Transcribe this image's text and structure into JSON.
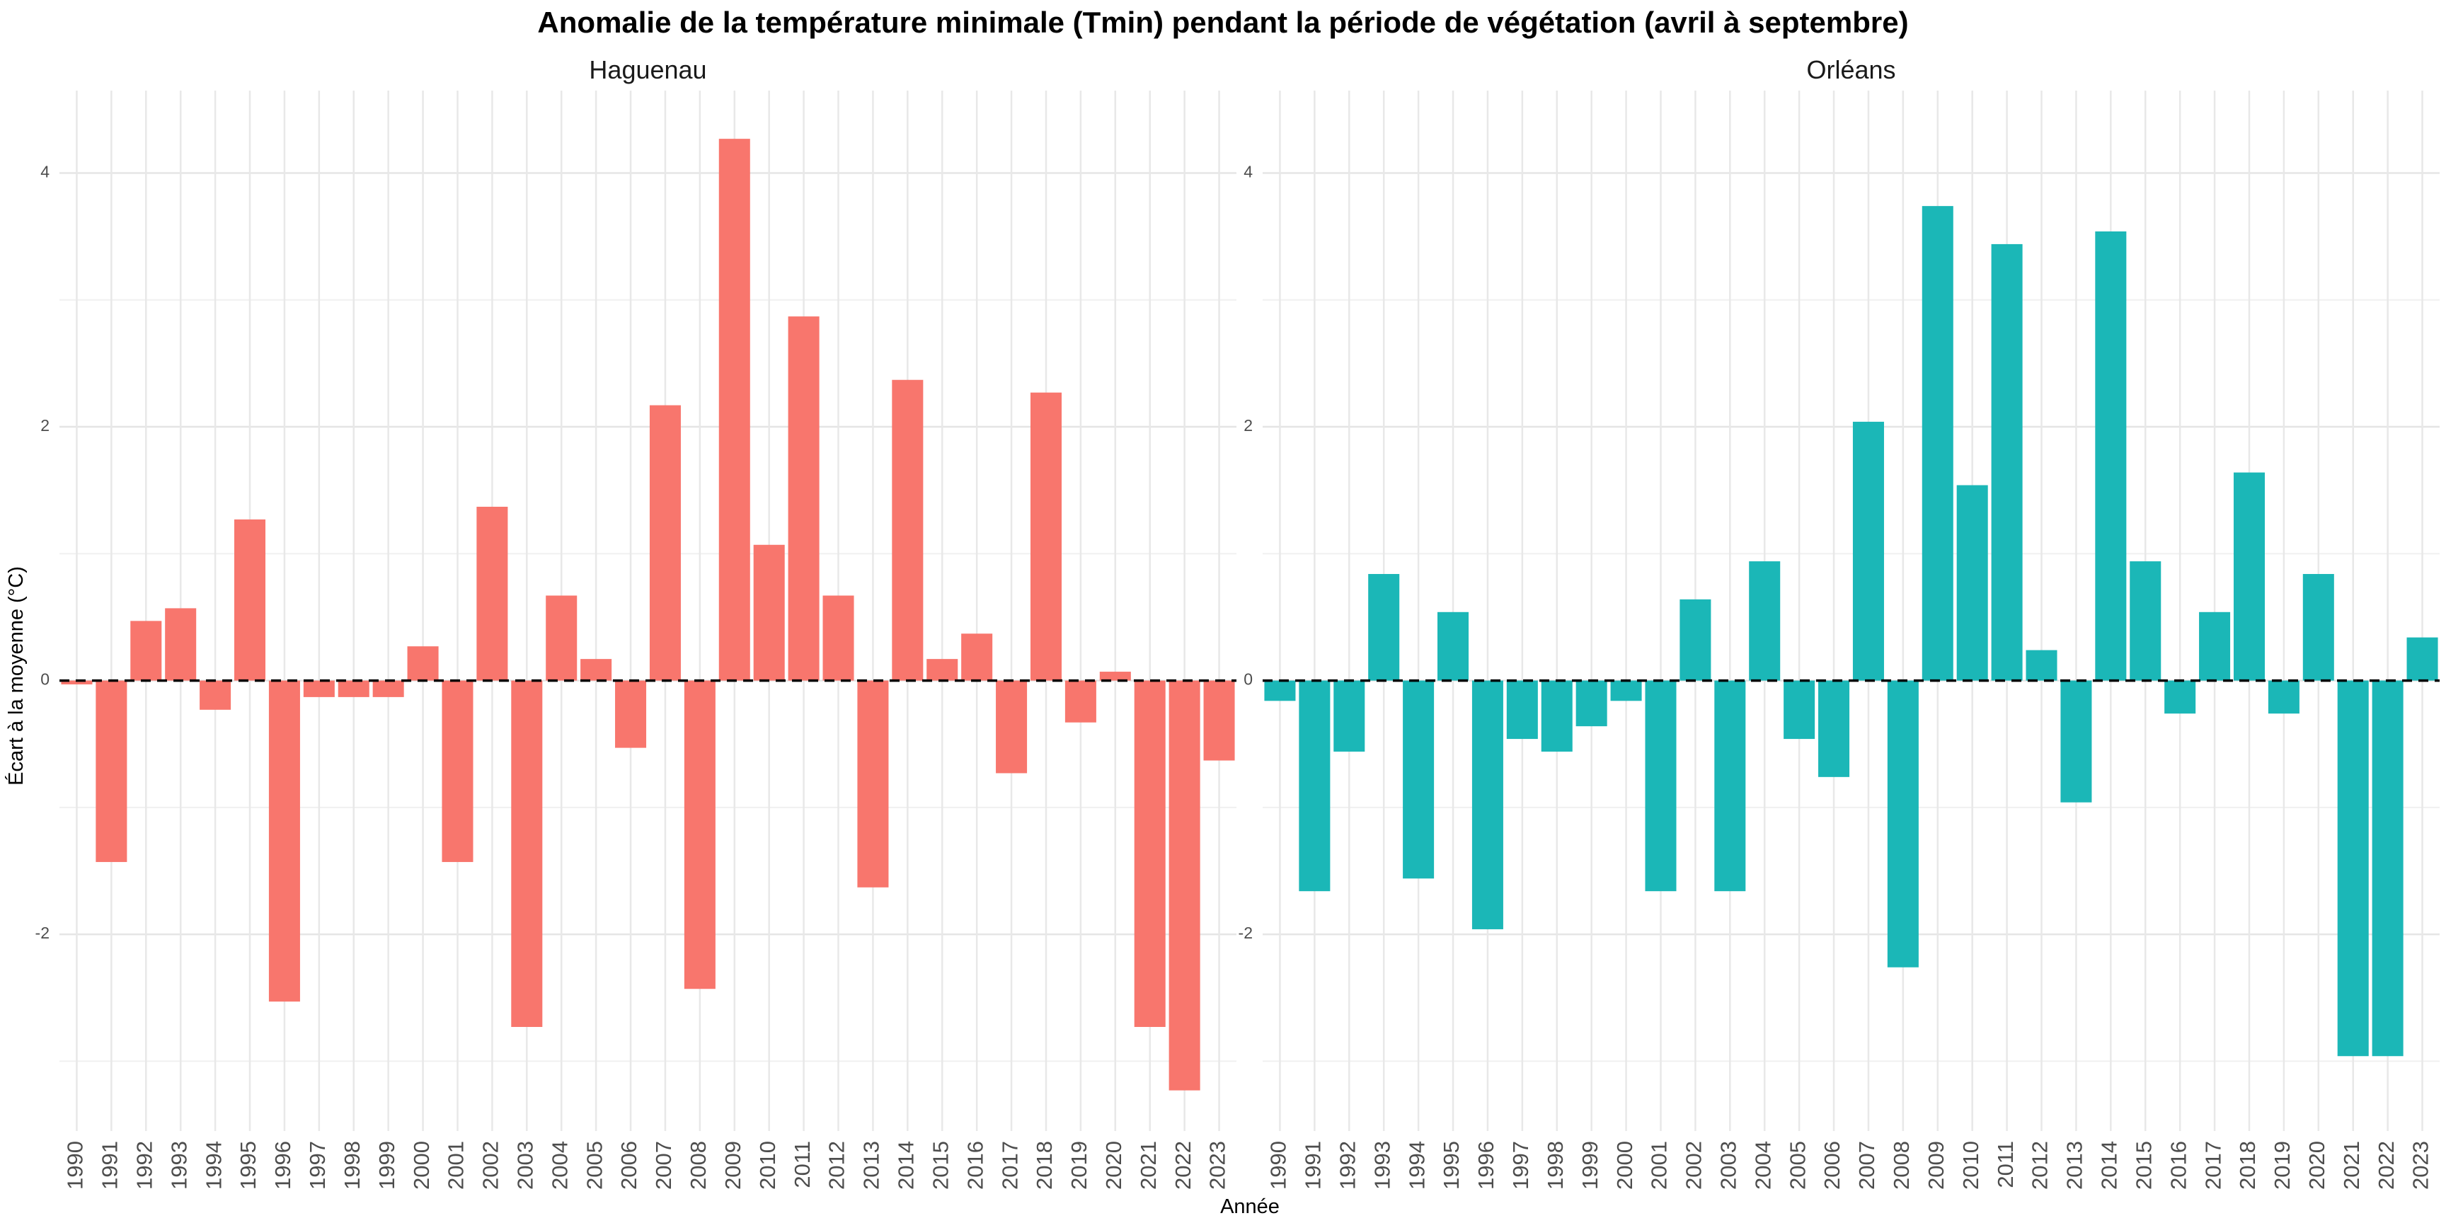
{
  "chart_data": {
    "type": "bar",
    "title": "Anomalie de la température minimale (Tmin) pendant la période de végétation (avril à septembre)",
    "xlabel": "Année",
    "ylabel": "Écart à la moyenne (°C)",
    "ylim": [
      -3.55,
      4.65
    ],
    "yticks": [
      -2,
      0,
      2,
      4
    ],
    "grid": true,
    "legend": "none",
    "reference_line": 0,
    "categories": [
      "1990",
      "1991",
      "1992",
      "1993",
      "1994",
      "1995",
      "1996",
      "1997",
      "1998",
      "1999",
      "2000",
      "2001",
      "2002",
      "2003",
      "2004",
      "2005",
      "2006",
      "2007",
      "2008",
      "2009",
      "2010",
      "2011",
      "2012",
      "2013",
      "2014",
      "2015",
      "2016",
      "2017",
      "2018",
      "2019",
      "2020",
      "2021",
      "2022",
      "2023"
    ],
    "panels": [
      {
        "name": "Haguenau",
        "color": "#F8766D",
        "values": [
          -0.03,
          -1.43,
          0.47,
          0.57,
          -0.23,
          1.27,
          -2.53,
          -0.13,
          -0.13,
          -0.13,
          0.27,
          -1.43,
          1.37,
          -2.73,
          0.67,
          0.17,
          -0.53,
          2.17,
          -2.43,
          4.27,
          1.07,
          2.87,
          0.67,
          -1.63,
          2.37,
          0.17,
          0.37,
          -0.73,
          2.27,
          -0.33,
          0.07,
          -2.73,
          -3.23,
          -0.63
        ]
      },
      {
        "name": "Orléans",
        "color": "#1BB7B7",
        "values": [
          -0.16,
          -1.66,
          -0.56,
          0.84,
          -1.56,
          0.54,
          -1.96,
          -0.46,
          -0.56,
          -0.36,
          -0.16,
          -1.66,
          0.64,
          -1.66,
          0.94,
          -0.46,
          -0.76,
          2.04,
          -2.26,
          3.74,
          1.54,
          3.44,
          0.24,
          -0.96,
          3.54,
          0.94,
          -0.26,
          0.54,
          1.64,
          -0.26,
          0.84,
          -2.96,
          -2.96,
          0.34
        ]
      }
    ]
  }
}
